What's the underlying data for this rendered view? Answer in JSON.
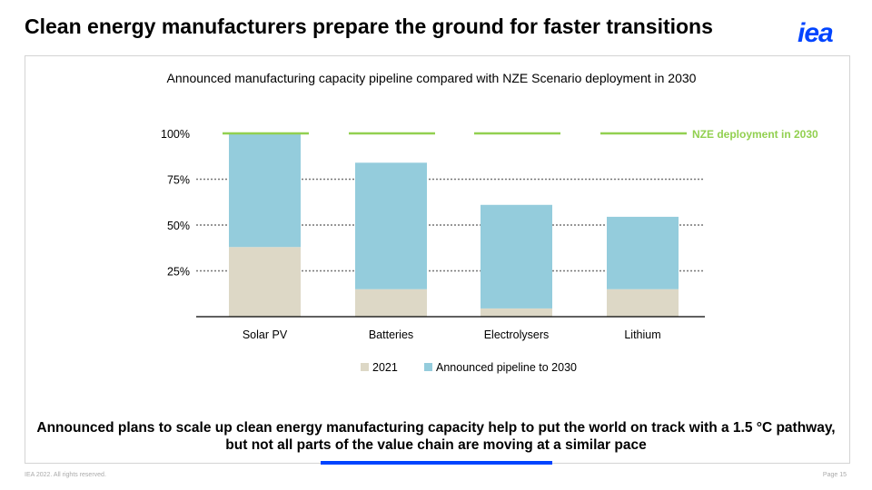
{
  "header": {
    "title": "Clean energy manufacturers prepare the ground for faster transitions",
    "logo": "iea"
  },
  "footer": {
    "copyright": "IEA 2022. All rights reserved.",
    "page": "Page 15"
  },
  "conclusion": "Announced plans to scale up clean energy manufacturing capacity help to put the world on track with a 1.5 °C pathway, but not all parts of the value chain are moving at a similar pace",
  "colors": {
    "base": "#ddd8c6",
    "pipeline": "#94ccdc",
    "nze": "#92d050",
    "accent": "#0044ff"
  },
  "chart_data": {
    "type": "bar",
    "stacked": true,
    "title": "Announced manufacturing capacity pipeline compared with NZE Scenario deployment in 2030",
    "categories": [
      "Solar PV",
      "Batteries",
      "Electrolysers",
      "Lithium"
    ],
    "series": [
      {
        "name": "2021",
        "values": [
          38,
          15,
          4.5,
          15
        ]
      },
      {
        "name": "Announced pipeline to 2030",
        "values": [
          62,
          69,
          56.5,
          39.5
        ]
      }
    ],
    "reference_line": {
      "label": "NZE deployment in 2030",
      "value": 100
    },
    "yticks": [
      "25%",
      "50%",
      "75%",
      "100%"
    ],
    "ytick_values": [
      25,
      50,
      75,
      100
    ],
    "ylim": [
      0,
      100
    ],
    "grid": "dotted",
    "legend": "bottom"
  }
}
